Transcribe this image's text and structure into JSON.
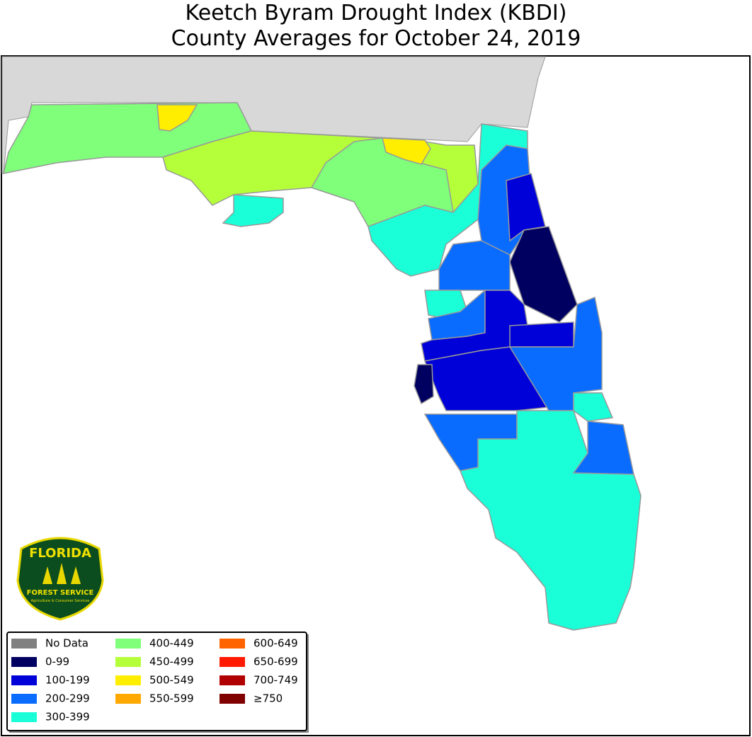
{
  "header": {
    "title_line1": "Keetch Byram Drought Index (KBDI)",
    "title_line2": "County Averages for October 24, 2019"
  },
  "logo": {
    "name": "FLORIDA",
    "org": "FOREST SERVICE",
    "dept": "Agriculture & Consumer Services"
  },
  "legend": [
    {
      "label": "No Data",
      "color": "#808080"
    },
    {
      "label": "0-99",
      "color": "#000060"
    },
    {
      "label": "100-199",
      "color": "#0000d8"
    },
    {
      "label": "200-299",
      "color": "#0a6cff"
    },
    {
      "label": "300-399",
      "color": "#1affd8"
    },
    {
      "label": "400-449",
      "color": "#7fff7a"
    },
    {
      "label": "450-499",
      "color": "#b4ff3a"
    },
    {
      "label": "500-549",
      "color": "#ffee00"
    },
    {
      "label": "550-599",
      "color": "#ffa800"
    },
    {
      "label": "600-649",
      "color": "#ff6400"
    },
    {
      "label": "650-699",
      "color": "#ff1a00"
    },
    {
      "label": "700-749",
      "color": "#b00000"
    },
    {
      "label": "≥750",
      "color": "#800000"
    }
  ]
}
